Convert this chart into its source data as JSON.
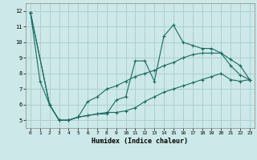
{
  "xlabel": "Humidex (Indice chaleur)",
  "background_color": "#cce8e8",
  "grid_color": "#aacccc",
  "line_color": "#1a6b60",
  "xlim": [
    -0.5,
    23.5
  ],
  "ylim": [
    4.5,
    12.5
  ],
  "xticks": [
    0,
    1,
    2,
    3,
    4,
    5,
    6,
    7,
    8,
    9,
    10,
    11,
    12,
    13,
    14,
    15,
    16,
    17,
    18,
    19,
    20,
    21,
    22,
    23
  ],
  "yticks": [
    5,
    6,
    7,
    8,
    9,
    10,
    11,
    12
  ],
  "series1_x": [
    0,
    1,
    2,
    3,
    4,
    5,
    6,
    7,
    8,
    9,
    10,
    11,
    12,
    13,
    14,
    15,
    16,
    17,
    18,
    19,
    20,
    21,
    22,
    23
  ],
  "series1_y": [
    11.9,
    7.5,
    6.0,
    5.0,
    5.0,
    5.2,
    5.3,
    5.4,
    5.4,
    6.3,
    6.5,
    8.8,
    8.8,
    7.5,
    10.4,
    11.1,
    10.0,
    9.8,
    9.6,
    9.6,
    9.3,
    8.9,
    8.5,
    7.6
  ],
  "series2_x": [
    0,
    2,
    3,
    4,
    5,
    6,
    7,
    8,
    9,
    10,
    11,
    12,
    13,
    14,
    15,
    16,
    17,
    18,
    19,
    20,
    21,
    22,
    23
  ],
  "series2_y": [
    11.9,
    6.0,
    5.0,
    5.0,
    5.2,
    6.2,
    6.5,
    7.0,
    7.2,
    7.5,
    7.8,
    8.0,
    8.2,
    8.5,
    8.7,
    9.0,
    9.2,
    9.3,
    9.3,
    9.3,
    8.5,
    7.9,
    7.6
  ],
  "series3_x": [
    0,
    2,
    3,
    4,
    5,
    6,
    7,
    8,
    9,
    10,
    11,
    12,
    13,
    14,
    15,
    16,
    17,
    18,
    19,
    20,
    21,
    22,
    23
  ],
  "series3_y": [
    11.9,
    6.0,
    5.0,
    5.0,
    5.2,
    5.3,
    5.4,
    5.5,
    5.5,
    5.6,
    5.8,
    6.2,
    6.5,
    6.8,
    7.0,
    7.2,
    7.4,
    7.6,
    7.8,
    8.0,
    7.6,
    7.5,
    7.6
  ]
}
